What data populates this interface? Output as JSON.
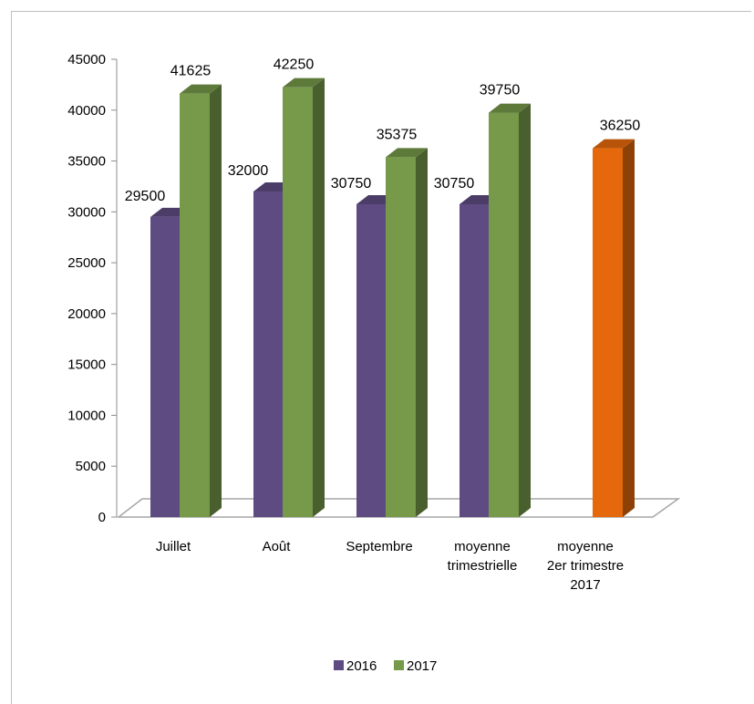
{
  "chart_data": {
    "type": "bar",
    "categories": [
      "Juillet",
      "Août",
      "Septembre",
      "moyenne\ntrimestrielle",
      "moyenne\n2er trimestre\n2017"
    ],
    "series": [
      {
        "name": "2016",
        "values": [
          29500,
          32000,
          30750,
          30750,
          null
        ],
        "color": "#5e4b82"
      },
      {
        "name": "2017",
        "values": [
          41625,
          42250,
          35375,
          39750,
          null
        ],
        "color": "#76994a"
      }
    ],
    "special_bar": {
      "category_index": 4,
      "value": 36250,
      "label": "36250",
      "color": "#e5690c"
    },
    "data_labels": {
      "2016": [
        "29500",
        "32000",
        "30750",
        "30750",
        ""
      ],
      "2017": [
        "41625",
        "42250",
        "35375",
        "39750",
        ""
      ]
    },
    "ylim": [
      0,
      45000
    ],
    "yticks": [
      0,
      5000,
      10000,
      15000,
      20000,
      25000,
      30000,
      35000,
      40000,
      45000
    ],
    "title": "",
    "xlabel": "",
    "ylabel": "",
    "grid": false,
    "legend": {
      "position": "bottom",
      "entries": [
        "2016",
        "2017"
      ]
    },
    "style": "3d-column"
  }
}
